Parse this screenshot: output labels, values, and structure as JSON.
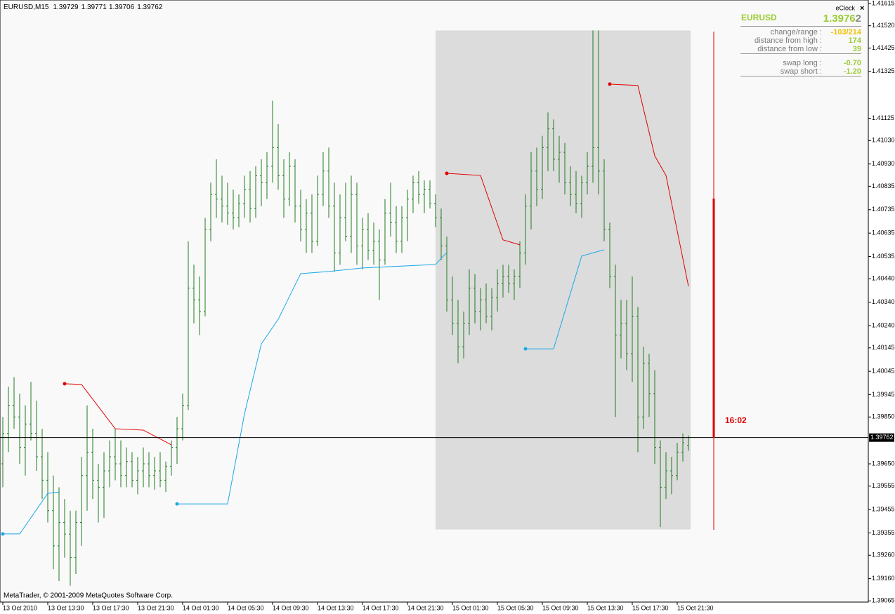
{
  "chart_data": {
    "type": "ohlc",
    "title": "EURUSD,M15",
    "footer": "MetaTrader, © 2001-2009 MetaQuotes Software Corp.",
    "clock": "16:02",
    "bar_color": "#1f7a1f",
    "xlim": [
      -0.5,
      154
    ],
    "ylim": [
      1.3906,
      1.4163
    ],
    "yticks": [
      {
        "value": 1.41615,
        "label": "1.41615"
      },
      {
        "value": 1.4152,
        "label": "1.41520"
      },
      {
        "value": 1.41425,
        "label": "1.41425"
      },
      {
        "value": 1.41325,
        "label": "1.41325"
      },
      {
        "value": 1.41125,
        "label": "1.41125"
      },
      {
        "value": 1.4103,
        "label": "1.41030"
      },
      {
        "value": 1.4093,
        "label": "1.40930"
      },
      {
        "value": 1.40835,
        "label": "1.40835"
      },
      {
        "value": 1.40735,
        "label": "1.40735"
      },
      {
        "value": 1.40635,
        "label": "1.40635"
      },
      {
        "value": 1.40535,
        "label": "1.40535"
      },
      {
        "value": 1.4044,
        "label": "1.40440"
      },
      {
        "value": 1.4034,
        "label": "1.40340"
      },
      {
        "value": 1.4024,
        "label": "1.40240"
      },
      {
        "value": 1.40145,
        "label": "1.40145"
      },
      {
        "value": 1.40045,
        "label": "1.40045"
      },
      {
        "value": 1.39945,
        "label": "1.39945"
      },
      {
        "value": 1.3985,
        "label": "1.39850"
      },
      {
        "value": 1.3965,
        "label": "1.39650"
      },
      {
        "value": 1.39555,
        "label": "1.39555"
      },
      {
        "value": 1.39455,
        "label": "1.39455"
      },
      {
        "value": 1.39355,
        "label": "1.39355"
      },
      {
        "value": 1.3926,
        "label": "1.39260"
      },
      {
        "value": 1.3916,
        "label": "1.39160"
      },
      {
        "value": 1.39065,
        "label": "1.39065"
      }
    ],
    "xticks": [
      {
        "value": 0,
        "label": "13 Oct 2010"
      },
      {
        "value": 8,
        "label": "13 Oct 13:30"
      },
      {
        "value": 16,
        "label": "13 Oct 17:30"
      },
      {
        "value": 24,
        "label": "13 Oct 21:30"
      },
      {
        "value": 32,
        "label": "14 Oct 01:30"
      },
      {
        "value": 40,
        "label": "14 Oct 05:30"
      },
      {
        "value": 48,
        "label": "14 Oct 09:30"
      },
      {
        "value": 56,
        "label": "14 Oct 13:30"
      },
      {
        "value": 64,
        "label": "14 Oct 17:30"
      },
      {
        "value": 72,
        "label": "14 Oct 21:30"
      },
      {
        "value": 80,
        "label": "15 Oct 01:30"
      },
      {
        "value": 88,
        "label": "15 Oct 05:30"
      },
      {
        "value": 96,
        "label": "15 Oct 09:30"
      },
      {
        "value": 104,
        "label": "15 Oct 13:30"
      },
      {
        "value": 112,
        "label": "15 Oct 17:30"
      },
      {
        "value": 120,
        "label": "15 Oct 21:30"
      }
    ],
    "session_box": {
      "x": [
        77,
        122.4
      ],
      "range": [
        1.3937,
        1.415
      ]
    },
    "bars": [
      [
        1.3965,
        1.3985,
        1.3955,
        1.3978
      ],
      [
        1.3978,
        1.3998,
        1.397,
        1.399
      ],
      [
        1.399,
        1.4002,
        1.398,
        1.3985
      ],
      [
        1.3985,
        1.3995,
        1.3965,
        1.3972
      ],
      [
        1.3972,
        1.399,
        1.396,
        1.3982
      ],
      [
        1.3982,
        1.4,
        1.3975,
        1.3978
      ],
      [
        1.3978,
        1.3992,
        1.3962,
        1.3968
      ],
      [
        1.3968,
        1.398,
        1.395,
        1.3958
      ],
      [
        1.3958,
        1.397,
        1.394,
        1.3945
      ],
      [
        1.3945,
        1.396,
        1.392,
        1.393
      ],
      [
        1.393,
        1.3955,
        1.3915,
        1.394
      ],
      [
        1.394,
        1.395,
        1.3925,
        1.3935
      ],
      [
        1.3935,
        1.3945,
        1.3913,
        1.3925
      ],
      [
        1.3925,
        1.3945,
        1.3918,
        1.394
      ],
      [
        1.394,
        1.3968,
        1.393,
        1.396
      ],
      [
        1.396,
        1.399,
        1.3945,
        1.397
      ],
      [
        1.397,
        1.398,
        1.395,
        1.3958
      ],
      [
        1.3958,
        1.3965,
        1.394,
        1.3955
      ],
      [
        1.3955,
        1.397,
        1.3942,
        1.3962
      ],
      [
        1.3962,
        1.3975,
        1.3955,
        1.3968
      ],
      [
        1.3968,
        1.398,
        1.3958,
        1.3965
      ],
      [
        1.3965,
        1.3975,
        1.3955,
        1.396
      ],
      [
        1.396,
        1.3972,
        1.3955,
        1.3966
      ],
      [
        1.3966,
        1.397,
        1.3955,
        1.3958
      ],
      [
        1.3958,
        1.3968,
        1.3952,
        1.3962
      ],
      [
        1.3962,
        1.3972,
        1.3955,
        1.3965
      ],
      [
        1.3965,
        1.397,
        1.3955,
        1.396
      ],
      [
        1.396,
        1.3968,
        1.3954,
        1.3962
      ],
      [
        1.3962,
        1.397,
        1.3955,
        1.3958
      ],
      [
        1.3958,
        1.3966,
        1.3953,
        1.3964
      ],
      [
        1.3964,
        1.3975,
        1.396,
        1.3972
      ],
      [
        1.3972,
        1.3985,
        1.3965,
        1.398
      ],
      [
        1.398,
        1.3995,
        1.3975,
        1.399
      ],
      [
        1.399,
        1.406,
        1.3988,
        1.404
      ],
      [
        1.404,
        1.405,
        1.4025,
        1.4035
      ],
      [
        1.4035,
        1.4045,
        1.402,
        1.403
      ],
      [
        1.403,
        1.407,
        1.4028,
        1.4065
      ],
      [
        1.4065,
        1.4085,
        1.406,
        1.408
      ],
      [
        1.408,
        1.4095,
        1.407,
        1.4078
      ],
      [
        1.4078,
        1.4088,
        1.4068,
        1.4075
      ],
      [
        1.4075,
        1.4085,
        1.4067,
        1.4072
      ],
      [
        1.4072,
        1.4082,
        1.4065,
        1.407
      ],
      [
        1.407,
        1.408,
        1.4066,
        1.4076
      ],
      [
        1.4076,
        1.4088,
        1.407,
        1.4082
      ],
      [
        1.4082,
        1.409,
        1.4068,
        1.4074
      ],
      [
        1.4074,
        1.4092,
        1.407,
        1.4088
      ],
      [
        1.4088,
        1.4095,
        1.4075,
        1.4085
      ],
      [
        1.4085,
        1.4098,
        1.4078,
        1.4092
      ],
      [
        1.4092,
        1.412,
        1.4085,
        1.41
      ],
      [
        1.41,
        1.411,
        1.4082,
        1.4088
      ],
      [
        1.4088,
        1.4095,
        1.407,
        1.4078
      ],
      [
        1.4078,
        1.4098,
        1.4075,
        1.4092
      ],
      [
        1.4092,
        1.4095,
        1.4068,
        1.4075
      ],
      [
        1.4075,
        1.4082,
        1.406,
        1.4065
      ],
      [
        1.4065,
        1.4078,
        1.4055,
        1.4072
      ],
      [
        1.4072,
        1.408,
        1.4055,
        1.406
      ],
      [
        1.406,
        1.4088,
        1.4058,
        1.408
      ],
      [
        1.408,
        1.4098,
        1.4075,
        1.409
      ],
      [
        1.409,
        1.41,
        1.407,
        1.4075
      ],
      [
        1.4075,
        1.4085,
        1.4047,
        1.4055
      ],
      [
        1.4055,
        1.408,
        1.405,
        1.407
      ],
      [
        1.407,
        1.4085,
        1.406,
        1.4062
      ],
      [
        1.4062,
        1.4088,
        1.4055,
        1.408
      ],
      [
        1.408,
        1.4085,
        1.405,
        1.4058
      ],
      [
        1.4058,
        1.407,
        1.4048,
        1.4065
      ],
      [
        1.4065,
        1.4072,
        1.4052,
        1.4056
      ],
      [
        1.4056,
        1.4068,
        1.405,
        1.406
      ],
      [
        1.406,
        1.4065,
        1.4035,
        1.4052
      ],
      [
        1.4052,
        1.4078,
        1.405,
        1.4072
      ],
      [
        1.4072,
        1.4085,
        1.4062,
        1.4068
      ],
      [
        1.4068,
        1.4075,
        1.4055,
        1.406
      ],
      [
        1.406,
        1.4075,
        1.4055,
        1.407
      ],
      [
        1.407,
        1.4082,
        1.406,
        1.4078
      ],
      [
        1.4078,
        1.4088,
        1.4072,
        1.4085
      ],
      [
        1.4085,
        1.409,
        1.4076,
        1.408
      ],
      [
        1.408,
        1.4086,
        1.4072,
        1.4082
      ],
      [
        1.4082,
        1.4086,
        1.4074,
        1.4076
      ],
      [
        1.4076,
        1.408,
        1.4066,
        1.407
      ],
      [
        1.407,
        1.4074,
        1.4052,
        1.4058
      ],
      [
        1.4058,
        1.4062,
        1.403,
        1.4035
      ],
      [
        1.4035,
        1.4045,
        1.402,
        1.4025
      ],
      [
        1.4025,
        1.4035,
        1.4008,
        1.4015
      ],
      [
        1.4015,
        1.403,
        1.401,
        1.4025
      ],
      [
        1.4025,
        1.4048,
        1.402,
        1.404
      ],
      [
        1.404,
        1.4046,
        1.4025,
        1.403
      ],
      [
        1.403,
        1.404,
        1.4022,
        1.4035
      ],
      [
        1.4035,
        1.4042,
        1.4025,
        1.4028
      ],
      [
        1.4028,
        1.404,
        1.4022,
        1.4036
      ],
      [
        1.4036,
        1.4048,
        1.403,
        1.4042
      ],
      [
        1.4042,
        1.405,
        1.4036,
        1.4045
      ],
      [
        1.4045,
        1.405,
        1.4038,
        1.4042
      ],
      [
        1.4042,
        1.4048,
        1.4035,
        1.4045
      ],
      [
        1.4045,
        1.406,
        1.404,
        1.4055
      ],
      [
        1.4055,
        1.408,
        1.405,
        1.4075
      ],
      [
        1.4075,
        1.4098,
        1.4065,
        1.409
      ],
      [
        1.409,
        1.41,
        1.4075,
        1.4082
      ],
      [
        1.4082,
        1.4105,
        1.4078,
        1.41
      ],
      [
        1.41,
        1.4115,
        1.409,
        1.4108
      ],
      [
        1.4108,
        1.4112,
        1.409,
        1.4095
      ],
      [
        1.4095,
        1.4105,
        1.4085,
        1.4098
      ],
      [
        1.4098,
        1.4102,
        1.408,
        1.4085
      ],
      [
        1.4085,
        1.4092,
        1.4075,
        1.408
      ],
      [
        1.408,
        1.409,
        1.4072,
        1.4076
      ],
      [
        1.4076,
        1.4088,
        1.407,
        1.4085
      ],
      [
        1.4085,
        1.4098,
        1.408,
        1.4092
      ],
      [
        1.4092,
        1.415,
        1.4085,
        1.41
      ],
      [
        1.41,
        1.415,
        1.408,
        1.409
      ],
      [
        1.409,
        1.4095,
        1.406,
        1.4065
      ],
      [
        1.4065,
        1.4068,
        1.404,
        1.4045
      ],
      [
        1.4045,
        1.405,
        1.3985,
        1.402
      ],
      [
        1.402,
        1.4035,
        1.401,
        1.4025
      ],
      [
        1.4025,
        1.4035,
        1.4005,
        1.4012
      ],
      [
        1.4012,
        1.4045,
        1.4,
        1.4028
      ],
      [
        1.4028,
        1.4032,
        1.397,
        1.3985
      ],
      [
        1.3985,
        1.4015,
        1.398,
        1.4008
      ],
      [
        1.4008,
        1.4012,
        1.3985,
        1.3995
      ],
      [
        1.3995,
        1.4005,
        1.3965,
        1.3972
      ],
      [
        1.3972,
        1.3975,
        1.3938,
        1.3955
      ],
      [
        1.3955,
        1.397,
        1.395,
        1.3962
      ],
      [
        1.3962,
        1.3968,
        1.3952,
        1.396
      ],
      [
        1.396,
        1.3974,
        1.3958,
        1.397
      ],
      [
        1.397,
        1.3978,
        1.3966,
        1.3974
      ],
      [
        1.39729,
        1.39771,
        1.39706,
        1.39762
      ]
    ],
    "lines": [
      {
        "color": "#1aa8e8",
        "x": [
          0,
          3,
          8,
          10
        ],
        "values": [
          1.39351,
          1.39351,
          1.39524,
          1.3953
        ]
      },
      {
        "color": "#e00000",
        "x": [
          11,
          14,
          20,
          25,
          30
        ],
        "values": [
          1.39992,
          1.39989,
          1.398,
          1.39794,
          1.39731
        ]
      },
      {
        "color": "#1aa8e8",
        "x": [
          31,
          40,
          43,
          46,
          49,
          53,
          58,
          64,
          77,
          79
        ],
        "values": [
          1.39479,
          1.39479,
          1.39863,
          1.40162,
          1.40267,
          1.40462,
          1.40471,
          1.40486,
          1.40501,
          1.40552
        ]
      },
      {
        "color": "#e00000",
        "x": [
          79,
          85,
          89,
          92
        ],
        "values": [
          1.4089,
          1.40881,
          1.40606,
          1.40585
        ]
      },
      {
        "color": "#1aa8e8",
        "x": [
          93,
          98,
          103,
          107
        ],
        "values": [
          1.40141,
          1.40141,
          1.40537,
          1.40564
        ]
      },
      {
        "color": "#e00000",
        "x": [
          108,
          113,
          116,
          118,
          122
        ],
        "values": [
          1.41271,
          1.41265,
          1.40965,
          1.40881,
          1.40408
        ]
      }
    ],
    "panel": {
      "title": "eClock",
      "close": "×",
      "symbol": "EURUSD",
      "price": "1.3976",
      "price_last_digit": "2",
      "groups": [
        [
          {
            "label": "change/range :",
            "value": "-103/214",
            "color": "#f0c000"
          },
          {
            "label": "distance from high :",
            "value": "174",
            "color": "#9acd32"
          },
          {
            "label": "distance from low :",
            "value": "39",
            "color": "#9acd32"
          }
        ],
        [
          {
            "label": "swap long :",
            "value": "-0.70",
            "color": "#9acd32"
          },
          {
            "label": "swap short :",
            "value": "-1.20",
            "color": "#9acd32"
          }
        ]
      ]
    }
  }
}
